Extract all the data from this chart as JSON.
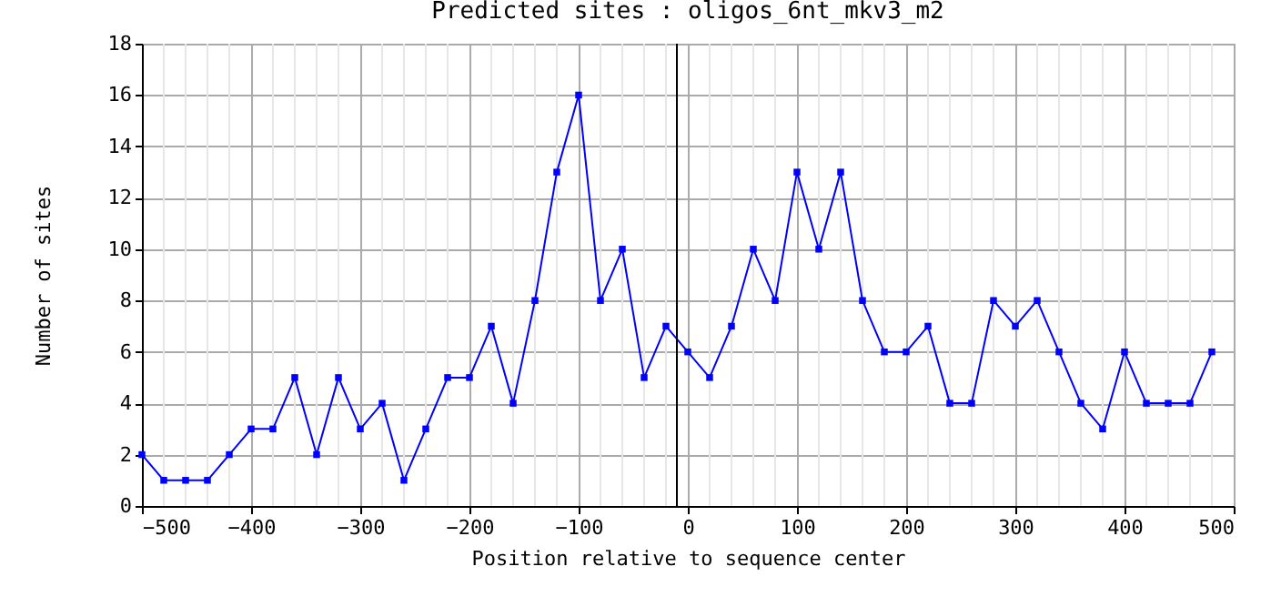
{
  "chart_data": {
    "type": "line",
    "title": "Predicted sites : oligos_6nt_mkv3_m2",
    "xlabel": "Position relative to sequence center",
    "ylabel": "Number of sites",
    "x": [
      -500,
      -480,
      -460,
      -440,
      -420,
      -400,
      -380,
      -360,
      -340,
      -320,
      -300,
      -280,
      -260,
      -240,
      -220,
      -200,
      -180,
      -160,
      -140,
      -120,
      -100,
      -80,
      -60,
      -40,
      -20,
      0,
      20,
      40,
      60,
      80,
      100,
      120,
      140,
      160,
      180,
      200,
      220,
      240,
      260,
      280,
      300,
      320,
      340,
      360,
      380,
      400,
      420,
      440,
      460,
      480
    ],
    "series": [
      {
        "color": "#0000ff",
        "values": [
          2,
          1,
          1,
          1,
          2,
          3,
          3,
          5,
          2,
          5,
          3,
          4,
          1,
          3,
          5,
          5,
          7,
          4,
          8,
          13,
          16,
          8,
          10,
          5,
          7,
          6,
          5,
          7,
          10,
          8,
          13,
          10,
          13,
          8,
          6,
          6,
          7,
          4,
          4,
          8,
          7,
          8,
          6,
          4,
          3,
          6,
          4,
          4,
          4,
          6
        ]
      }
    ],
    "xlim": [
      -500,
      500
    ],
    "xticks": [
      -500,
      -400,
      -300,
      -200,
      -100,
      0,
      100,
      200,
      300,
      400,
      500
    ],
    "ylim": [
      0,
      18
    ],
    "yticks": [
      0,
      2,
      4,
      6,
      8,
      10,
      12,
      14,
      16,
      18
    ],
    "ref_lines": [
      {
        "axis": "x",
        "value": -10,
        "color": "#000000"
      }
    ],
    "grid": true,
    "marker": "square",
    "line_style": "solid"
  }
}
